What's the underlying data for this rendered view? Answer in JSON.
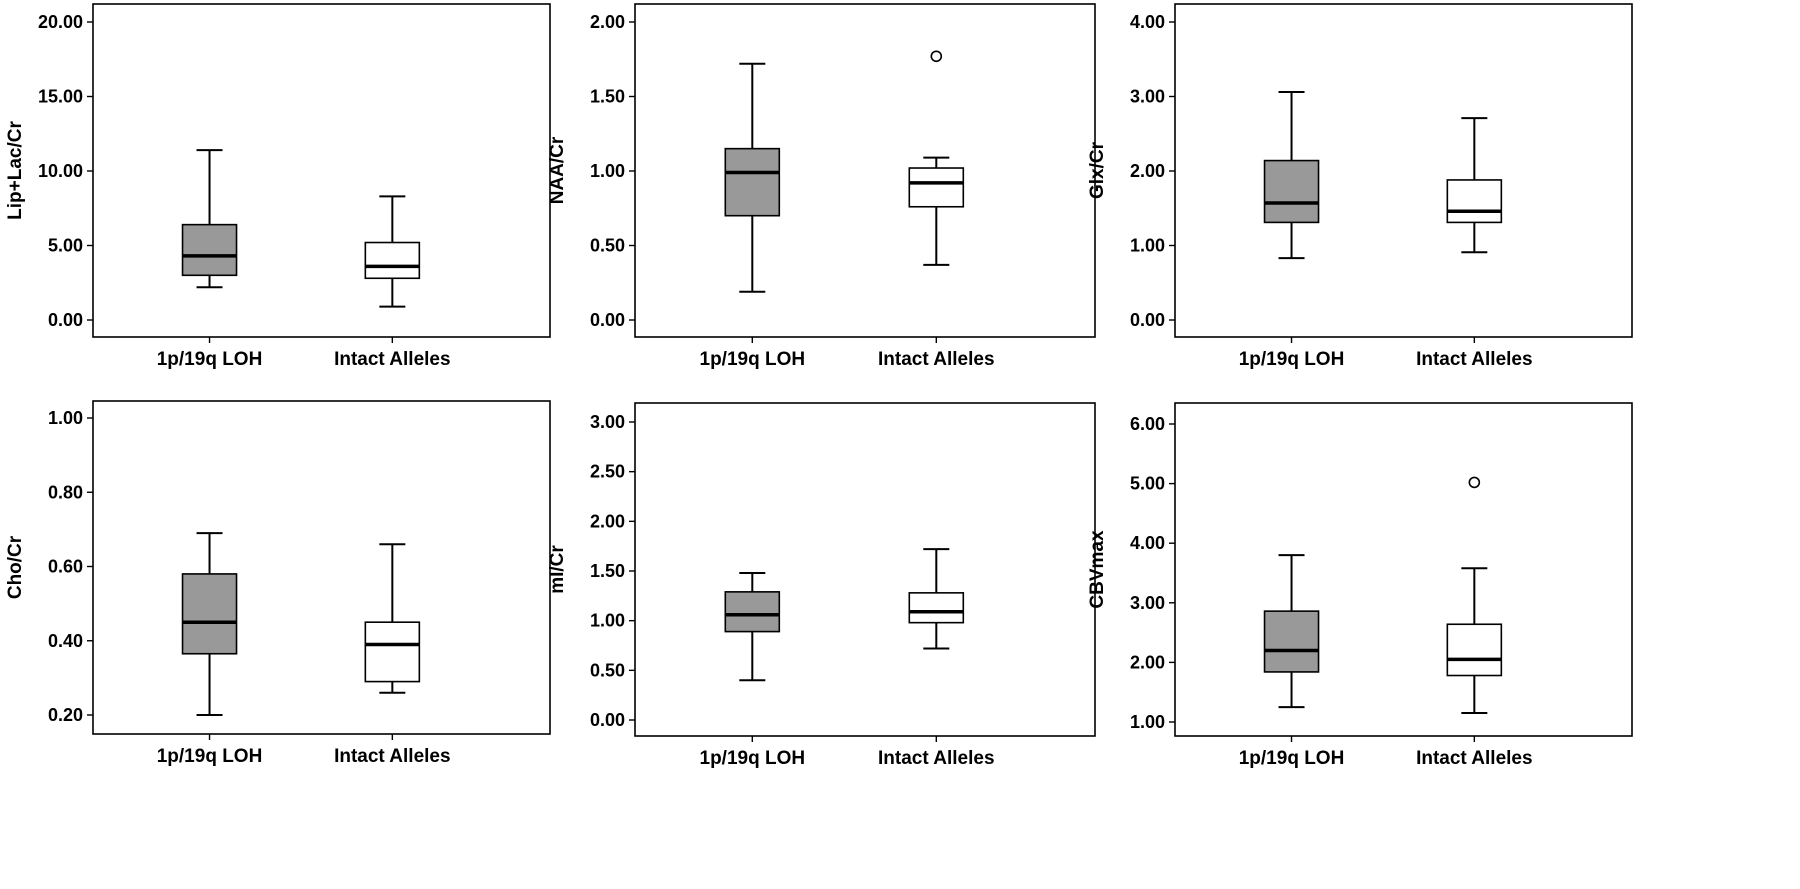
{
  "chart_data": [
    {
      "type": "boxplot",
      "ylabel": "Lip+Lac/Cr",
      "ylim": [
        0,
        20
      ],
      "yticks": [
        "0.00",
        "5.00",
        "10.00",
        "15.00",
        "20.00"
      ],
      "categories": [
        "1p/19q LOH",
        "Intact Alleles"
      ],
      "boxes": [
        {
          "min": 2.2,
          "q1": 3.0,
          "median": 4.3,
          "q3": 6.4,
          "max": 11.4,
          "fill": "#999999",
          "outliers": []
        },
        {
          "min": 0.9,
          "q1": 2.8,
          "median": 3.6,
          "q3": 5.2,
          "max": 8.3,
          "fill": "#ffffff",
          "outliers": []
        }
      ]
    },
    {
      "type": "boxplot",
      "ylabel": "NAA/Cr",
      "ylim": [
        0,
        2
      ],
      "yticks": [
        "0.00",
        "0.50",
        "1.00",
        "1.50",
        "2.00"
      ],
      "categories": [
        "1p/19q LOH",
        "Intact Alleles"
      ],
      "boxes": [
        {
          "min": 0.19,
          "q1": 0.7,
          "median": 0.99,
          "q3": 1.15,
          "max": 1.72,
          "fill": "#999999",
          "outliers": []
        },
        {
          "min": 0.37,
          "q1": 0.76,
          "median": 0.92,
          "q3": 1.02,
          "max": 1.09,
          "fill": "#ffffff",
          "outliers": [
            1.77
          ]
        }
      ]
    },
    {
      "type": "boxplot",
      "ylabel": "Glx/Cr",
      "ylim": [
        0,
        4
      ],
      "yticks": [
        "0.00",
        "1.00",
        "2.00",
        "3.00",
        "4.00"
      ],
      "categories": [
        "1p/19q LOH",
        "Intact Alleles"
      ],
      "boxes": [
        {
          "min": 0.83,
          "q1": 1.31,
          "median": 1.57,
          "q3": 2.14,
          "max": 3.06,
          "fill": "#999999",
          "outliers": []
        },
        {
          "min": 0.91,
          "q1": 1.31,
          "median": 1.46,
          "q3": 1.88,
          "max": 2.71,
          "fill": "#ffffff",
          "outliers": []
        }
      ]
    },
    {
      "type": "boxplot",
      "ylabel": "Cho/Cr",
      "ylim": [
        0.2,
        1.0
      ],
      "yticks": [
        "0.20",
        "0.40",
        "0.60",
        "0.80",
        "1.00"
      ],
      "categories": [
        "1p/19q LOH",
        "Intact Alleles"
      ],
      "boxes": [
        {
          "min": 0.2,
          "q1": 0.365,
          "median": 0.45,
          "q3": 0.58,
          "max": 0.69,
          "fill": "#999999",
          "outliers": []
        },
        {
          "min": 0.26,
          "q1": 0.29,
          "median": 0.39,
          "q3": 0.45,
          "max": 0.66,
          "fill": "#ffffff",
          "outliers": []
        }
      ]
    },
    {
      "type": "boxplot",
      "ylabel": "mI/Cr",
      "ylim": [
        0,
        3
      ],
      "yticks": [
        "0.00",
        "0.50",
        "1.00",
        "1.50",
        "2.00",
        "2.50",
        "3.00"
      ],
      "categories": [
        "1p/19q LOH",
        "Intact Alleles"
      ],
      "boxes": [
        {
          "min": 0.4,
          "q1": 0.89,
          "median": 1.06,
          "q3": 1.29,
          "max": 1.48,
          "fill": "#999999",
          "outliers": []
        },
        {
          "min": 0.72,
          "q1": 0.98,
          "median": 1.09,
          "q3": 1.28,
          "max": 1.72,
          "fill": "#ffffff",
          "outliers": []
        }
      ]
    },
    {
      "type": "boxplot",
      "ylabel": "CBVmax",
      "ylim": [
        1,
        6
      ],
      "yticks": [
        "1.00",
        "2.00",
        "3.00",
        "4.00",
        "5.00",
        "6.00"
      ],
      "categories": [
        "1p/19q LOH",
        "Intact Alleles"
      ],
      "boxes": [
        {
          "min": 1.25,
          "q1": 1.84,
          "median": 2.2,
          "q3": 2.86,
          "max": 3.8,
          "fill": "#999999",
          "outliers": []
        },
        {
          "min": 1.15,
          "q1": 1.78,
          "median": 2.05,
          "q3": 2.64,
          "max": 3.58,
          "fill": "#ffffff",
          "outliers": [
            5.02
          ]
        }
      ]
    }
  ]
}
